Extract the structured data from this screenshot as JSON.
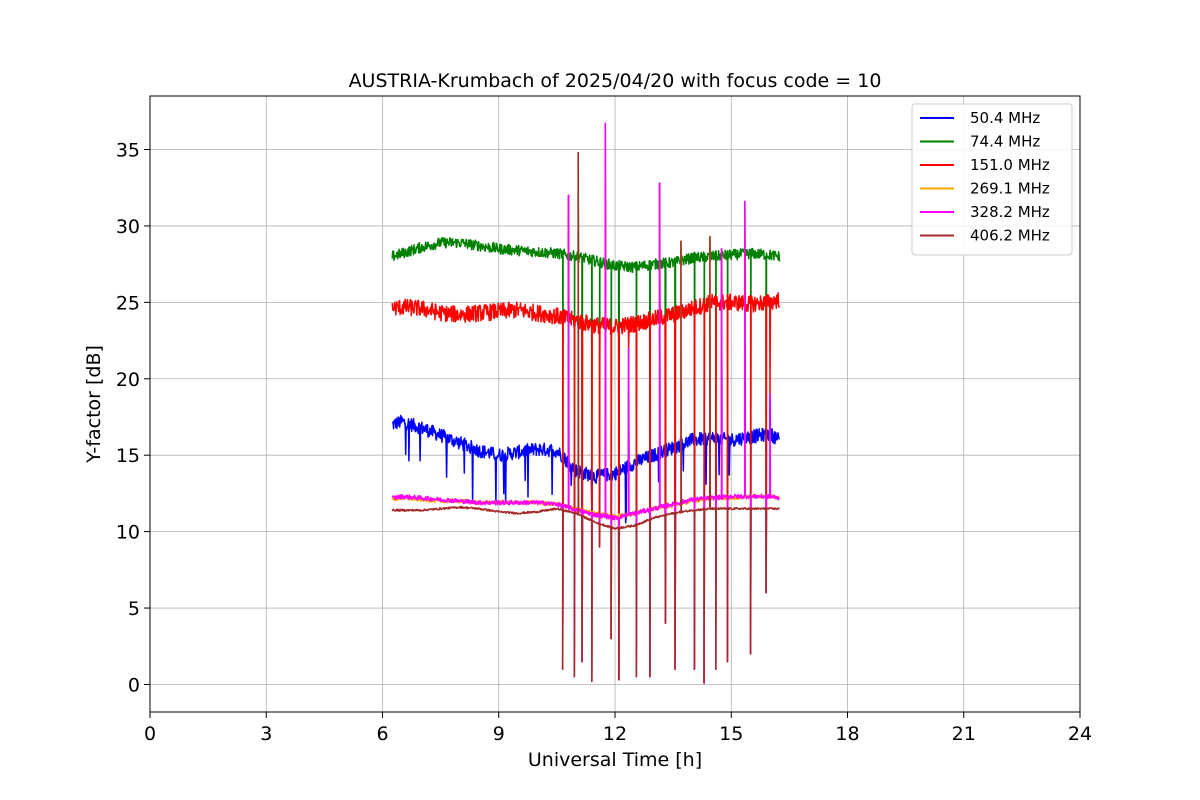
{
  "chart_data": {
    "type": "line",
    "title": "AUSTRIA-Krumbach of 2025/04/20 with focus code = 10",
    "xlabel": "Universal Time [h]",
    "ylabel": "Y-factor [dB]",
    "xlim": [
      0,
      24
    ],
    "ylim": [
      -1.8,
      38.5
    ],
    "xticks": [
      0,
      3,
      6,
      9,
      12,
      15,
      18,
      21,
      24
    ],
    "yticks": [
      0,
      5,
      10,
      15,
      20,
      25,
      30,
      35
    ],
    "grid": true,
    "legend_position": "top-right",
    "series": [
      {
        "name": " 50.4 MHz",
        "color": "#0000ff",
        "points": [
          [
            6.25,
            17.0
          ],
          [
            6.5,
            17.2
          ],
          [
            7.0,
            16.8
          ],
          [
            7.5,
            16.3
          ],
          [
            8.0,
            15.8
          ],
          [
            8.5,
            15.3
          ],
          [
            9.0,
            15.0
          ],
          [
            9.5,
            15.2
          ],
          [
            10.0,
            15.4
          ],
          [
            10.5,
            15.3
          ],
          [
            11.0,
            14.0
          ],
          [
            11.5,
            13.6
          ],
          [
            12.0,
            13.8
          ],
          [
            12.5,
            14.5
          ],
          [
            13.0,
            15.0
          ],
          [
            13.5,
            15.5
          ],
          [
            14.0,
            16.0
          ],
          [
            14.5,
            16.1
          ],
          [
            15.0,
            16.0
          ],
          [
            15.5,
            16.2
          ],
          [
            16.0,
            16.4
          ],
          [
            16.25,
            16.0
          ]
        ]
      },
      {
        "name": " 74.4 MHz",
        "color": "#008000",
        "points": [
          [
            6.25,
            28.0
          ],
          [
            6.5,
            28.2
          ],
          [
            7.0,
            28.6
          ],
          [
            7.5,
            28.9
          ],
          [
            8.0,
            28.9
          ],
          [
            8.5,
            28.7
          ],
          [
            9.0,
            28.5
          ],
          [
            9.5,
            28.4
          ],
          [
            10.0,
            28.3
          ],
          [
            10.5,
            28.2
          ],
          [
            11.0,
            28.0
          ],
          [
            11.5,
            27.7
          ],
          [
            12.0,
            27.4
          ],
          [
            12.5,
            27.3
          ],
          [
            13.0,
            27.5
          ],
          [
            13.5,
            27.6
          ],
          [
            14.0,
            27.9
          ],
          [
            14.5,
            28.0
          ],
          [
            15.0,
            28.1
          ],
          [
            15.5,
            28.2
          ],
          [
            16.0,
            28.1
          ],
          [
            16.25,
            28.0
          ]
        ]
      },
      {
        "name": " 151.0 MHz",
        "color": "#ff0000",
        "points": [
          [
            6.25,
            24.6
          ],
          [
            6.5,
            24.7
          ],
          [
            7.0,
            24.6
          ],
          [
            7.5,
            24.3
          ],
          [
            8.0,
            24.2
          ],
          [
            8.5,
            24.3
          ],
          [
            9.0,
            24.4
          ],
          [
            9.5,
            24.5
          ],
          [
            10.0,
            24.3
          ],
          [
            10.5,
            24.1
          ],
          [
            11.0,
            23.8
          ],
          [
            11.5,
            23.5
          ],
          [
            12.0,
            23.4
          ],
          [
            12.5,
            23.6
          ],
          [
            13.0,
            23.9
          ],
          [
            13.5,
            24.2
          ],
          [
            14.0,
            24.6
          ],
          [
            14.5,
            25.0
          ],
          [
            15.0,
            25.0
          ],
          [
            15.5,
            24.9
          ],
          [
            16.0,
            25.0
          ],
          [
            16.25,
            25.2
          ]
        ]
      },
      {
        "name": " 269.1 MHz",
        "color": "#ffa500",
        "points": [
          [
            6.25,
            12.1
          ],
          [
            6.5,
            12.2
          ],
          [
            7.0,
            12.1
          ],
          [
            7.5,
            12.0
          ],
          [
            8.0,
            12.0
          ],
          [
            8.5,
            11.9
          ],
          [
            9.0,
            11.9
          ],
          [
            9.5,
            11.9
          ],
          [
            10.0,
            11.9
          ],
          [
            10.5,
            11.8
          ],
          [
            11.0,
            11.5
          ],
          [
            11.5,
            11.2
          ],
          [
            12.0,
            11.0
          ],
          [
            12.5,
            11.2
          ],
          [
            13.0,
            11.5
          ],
          [
            13.5,
            11.7
          ],
          [
            14.0,
            12.0
          ],
          [
            14.5,
            12.2
          ],
          [
            15.0,
            12.2
          ],
          [
            15.5,
            12.3
          ],
          [
            16.0,
            12.3
          ],
          [
            16.25,
            12.2
          ]
        ]
      },
      {
        "name": " 328.2 MHz",
        "color": "#ff00ff",
        "points": [
          [
            6.25,
            12.2
          ],
          [
            6.5,
            12.3
          ],
          [
            7.0,
            12.2
          ],
          [
            7.5,
            12.1
          ],
          [
            8.0,
            12.0
          ],
          [
            8.5,
            11.9
          ],
          [
            9.0,
            11.9
          ],
          [
            9.5,
            11.9
          ],
          [
            10.0,
            11.9
          ],
          [
            10.5,
            11.8
          ],
          [
            11.0,
            11.4
          ],
          [
            11.5,
            11.1
          ],
          [
            12.0,
            10.9
          ],
          [
            12.5,
            11.2
          ],
          [
            13.0,
            11.5
          ],
          [
            13.5,
            11.8
          ],
          [
            14.0,
            12.1
          ],
          [
            14.5,
            12.2
          ],
          [
            15.0,
            12.3
          ],
          [
            15.5,
            12.3
          ],
          [
            16.0,
            12.3
          ],
          [
            16.25,
            12.2
          ]
        ]
      },
      {
        "name": " 406.2 MHz",
        "color": "#a52a2a",
        "points": [
          [
            6.25,
            11.4
          ],
          [
            6.5,
            11.4
          ],
          [
            7.0,
            11.4
          ],
          [
            7.5,
            11.5
          ],
          [
            8.0,
            11.6
          ],
          [
            8.5,
            11.5
          ],
          [
            9.0,
            11.3
          ],
          [
            9.5,
            11.2
          ],
          [
            10.0,
            11.3
          ],
          [
            10.5,
            11.5
          ],
          [
            11.0,
            11.2
          ],
          [
            11.5,
            10.6
          ],
          [
            12.0,
            10.2
          ],
          [
            12.5,
            10.4
          ],
          [
            13.0,
            10.9
          ],
          [
            13.5,
            11.2
          ],
          [
            14.0,
            11.4
          ],
          [
            14.5,
            11.5
          ],
          [
            15.0,
            11.5
          ],
          [
            15.5,
            11.5
          ],
          [
            16.0,
            11.5
          ],
          [
            16.25,
            11.5
          ]
        ]
      }
    ],
    "spikes": [
      {
        "x": 10.65,
        "y": 1.0
      },
      {
        "x": 10.8,
        "y": 32.0
      },
      {
        "x": 10.95,
        "y": 0.5
      },
      {
        "x": 11.05,
        "y": 34.8
      },
      {
        "x": 11.15,
        "y": 1.5
      },
      {
        "x": 11.4,
        "y": 0.2
      },
      {
        "x": 11.6,
        "y": 9.0
      },
      {
        "x": 11.75,
        "y": 36.7
      },
      {
        "x": 11.9,
        "y": 3.0
      },
      {
        "x": 12.1,
        "y": 0.3
      },
      {
        "x": 12.35,
        "y": 22.0
      },
      {
        "x": 12.55,
        "y": 0.5
      },
      {
        "x": 12.9,
        "y": 0.5
      },
      {
        "x": 13.15,
        "y": 32.8
      },
      {
        "x": 13.3,
        "y": 4.0
      },
      {
        "x": 13.55,
        "y": 1.0
      },
      {
        "x": 13.7,
        "y": 29.0
      },
      {
        "x": 14.05,
        "y": 1.0
      },
      {
        "x": 14.3,
        "y": 0.1
      },
      {
        "x": 14.45,
        "y": 29.3
      },
      {
        "x": 14.6,
        "y": 1.0
      },
      {
        "x": 14.75,
        "y": 28.5
      },
      {
        "x": 14.9,
        "y": 1.5
      },
      {
        "x": 15.35,
        "y": 31.6
      },
      {
        "x": 15.5,
        "y": 2.0
      },
      {
        "x": 15.9,
        "y": 6.0
      },
      {
        "x": 16.0,
        "y": 19.0
      }
    ]
  }
}
